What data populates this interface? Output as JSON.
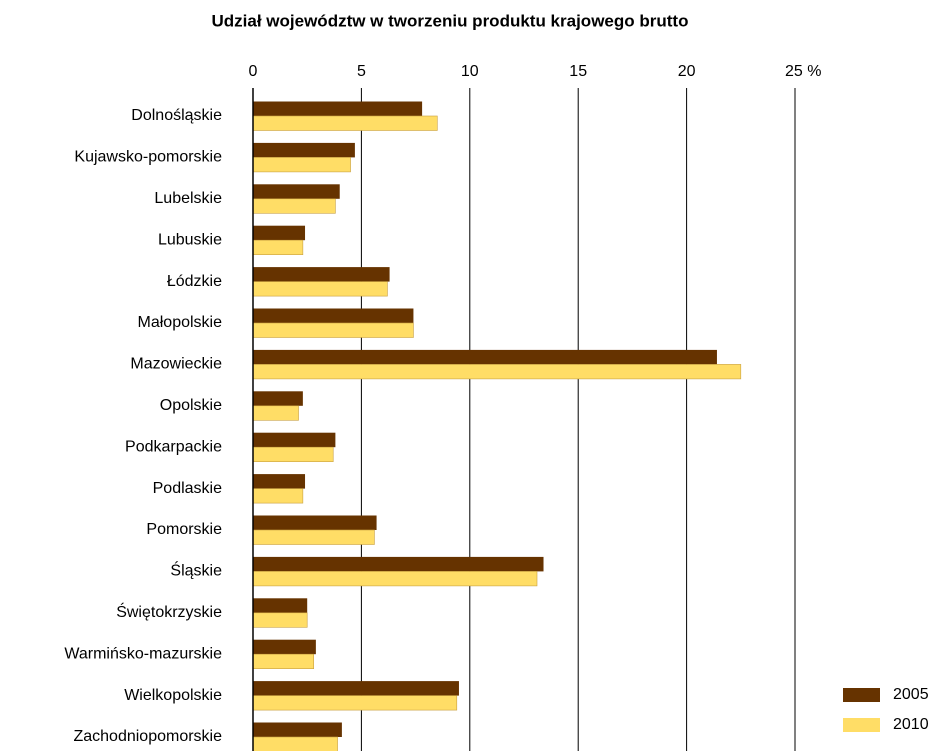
{
  "chart_data": {
    "type": "bar",
    "orientation": "horizontal",
    "title": "Udział województw w tworzeniu produktu krajowego brutto",
    "categories": [
      "Dolnośląskie",
      "Kujawsko-pomorskie",
      "Lubelskie",
      "Lubuskie",
      "Łódzkie",
      "Małopolskie",
      "Mazowieckie",
      "Opolskie",
      "Podkarpackie",
      "Podlaskie",
      "Pomorskie",
      "Śląskie",
      "Świętokrzyskie",
      "Warmińsko-mazurskie",
      "Wielkopolskie",
      "Zachodniopomorskie"
    ],
    "series": [
      {
        "name": "2005",
        "color": "#663300",
        "values": [
          7.8,
          4.7,
          4.0,
          2.4,
          6.3,
          7.4,
          21.4,
          2.3,
          3.8,
          2.4,
          5.7,
          13.4,
          2.5,
          2.9,
          9.5,
          4.1
        ]
      },
      {
        "name": "2010",
        "color": "#ffdd66",
        "values": [
          8.5,
          4.5,
          3.8,
          2.3,
          6.2,
          7.4,
          22.5,
          2.1,
          3.7,
          2.3,
          5.6,
          13.1,
          2.5,
          2.8,
          9.4,
          3.9
        ]
      }
    ],
    "xlim": [
      0,
      25
    ],
    "xticks": [
      0,
      5,
      10,
      15,
      20,
      {
        "value": 25,
        "label": "25 %"
      }
    ],
    "grid": true,
    "legend": "bottom-right"
  }
}
